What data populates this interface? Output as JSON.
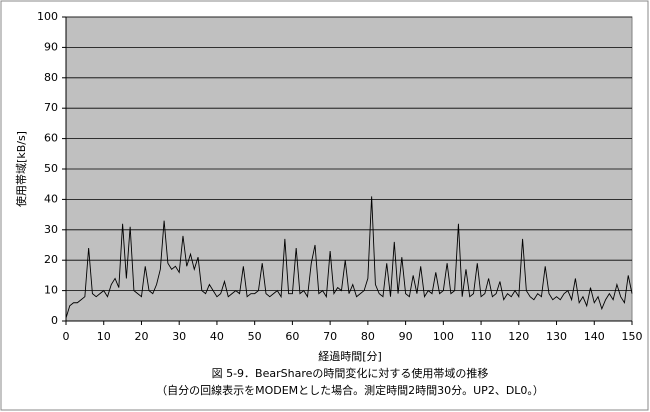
{
  "chart_data": {
    "type": "line",
    "x_label": "経過時間[分]",
    "y_label": "使用帯域[kB/s]",
    "caption": [
      "図 5-9．BearShareの時間変化に対する使用帯域の推移",
      "（自分の回線表示をMODEMとした場合。測定時間2時間30分。UP2、DL0。）"
    ],
    "x": [
      0,
      1,
      2,
      3,
      4,
      5,
      6,
      7,
      8,
      9,
      10,
      11,
      12,
      13,
      14,
      15,
      16,
      17,
      18,
      19,
      20,
      21,
      22,
      23,
      24,
      25,
      26,
      27,
      28,
      29,
      30,
      31,
      32,
      33,
      34,
      35,
      36,
      37,
      38,
      39,
      40,
      41,
      42,
      43,
      44,
      45,
      46,
      47,
      48,
      49,
      50,
      51,
      52,
      53,
      54,
      55,
      56,
      57,
      58,
      59,
      60,
      61,
      62,
      63,
      64,
      65,
      66,
      67,
      68,
      69,
      70,
      71,
      72,
      73,
      74,
      75,
      76,
      77,
      78,
      79,
      80,
      81,
      82,
      83,
      84,
      85,
      86,
      87,
      88,
      89,
      90,
      91,
      92,
      93,
      94,
      95,
      96,
      97,
      98,
      99,
      100,
      101,
      102,
      103,
      104,
      105,
      106,
      107,
      108,
      109,
      110,
      111,
      112,
      113,
      114,
      115,
      116,
      117,
      118,
      119,
      120,
      121,
      122,
      123,
      124,
      125,
      126,
      127,
      128,
      129,
      130,
      131,
      132,
      133,
      134,
      135,
      136,
      137,
      138,
      139,
      140,
      141,
      142,
      143,
      144,
      145,
      146,
      147,
      148,
      149,
      150
    ],
    "series": [
      {
        "color": "#000000",
        "values": [
          1,
          5,
          6,
          6,
          7,
          8,
          24,
          9,
          8,
          9,
          10,
          8,
          12,
          14,
          11,
          32,
          14,
          31,
          10,
          9,
          8,
          18,
          10,
          9,
          12,
          17,
          33,
          19,
          17,
          18,
          16,
          28,
          18,
          22,
          17,
          21,
          10,
          9,
          12,
          10,
          8,
          9,
          13,
          8,
          9,
          10,
          9,
          18,
          8,
          9,
          9,
          10,
          19,
          9,
          8,
          9,
          10,
          8,
          27,
          9,
          9,
          24,
          9,
          10,
          8,
          19,
          25,
          9,
          10,
          8,
          23,
          9,
          11,
          10,
          20,
          9,
          12,
          8,
          9,
          10,
          14,
          41,
          12,
          9,
          8,
          19,
          8,
          26,
          9,
          21,
          9,
          8,
          15,
          9,
          18,
          8,
          10,
          9,
          16,
          9,
          10,
          19,
          9,
          10,
          32,
          8,
          17,
          8,
          9,
          19,
          8,
          9,
          14,
          8,
          9,
          13,
          7,
          9,
          8,
          10,
          8,
          27,
          10,
          8,
          7,
          9,
          8,
          18,
          9,
          7,
          8,
          7,
          9,
          10,
          7,
          14,
          6,
          8,
          5,
          11,
          6,
          8,
          4,
          7,
          9,
          7,
          12,
          8,
          6,
          15,
          9
        ]
      }
    ],
    "xlim": [
      0,
      150
    ],
    "xticks": [
      0,
      10,
      20,
      30,
      40,
      50,
      60,
      70,
      80,
      90,
      100,
      110,
      120,
      130,
      140,
      150
    ],
    "ylim": [
      0,
      100
    ],
    "yticks": [
      0,
      10,
      20,
      30,
      40,
      50,
      60,
      70,
      80,
      90,
      100
    ],
    "grid": true,
    "plot_background": "#c0c0c0"
  }
}
